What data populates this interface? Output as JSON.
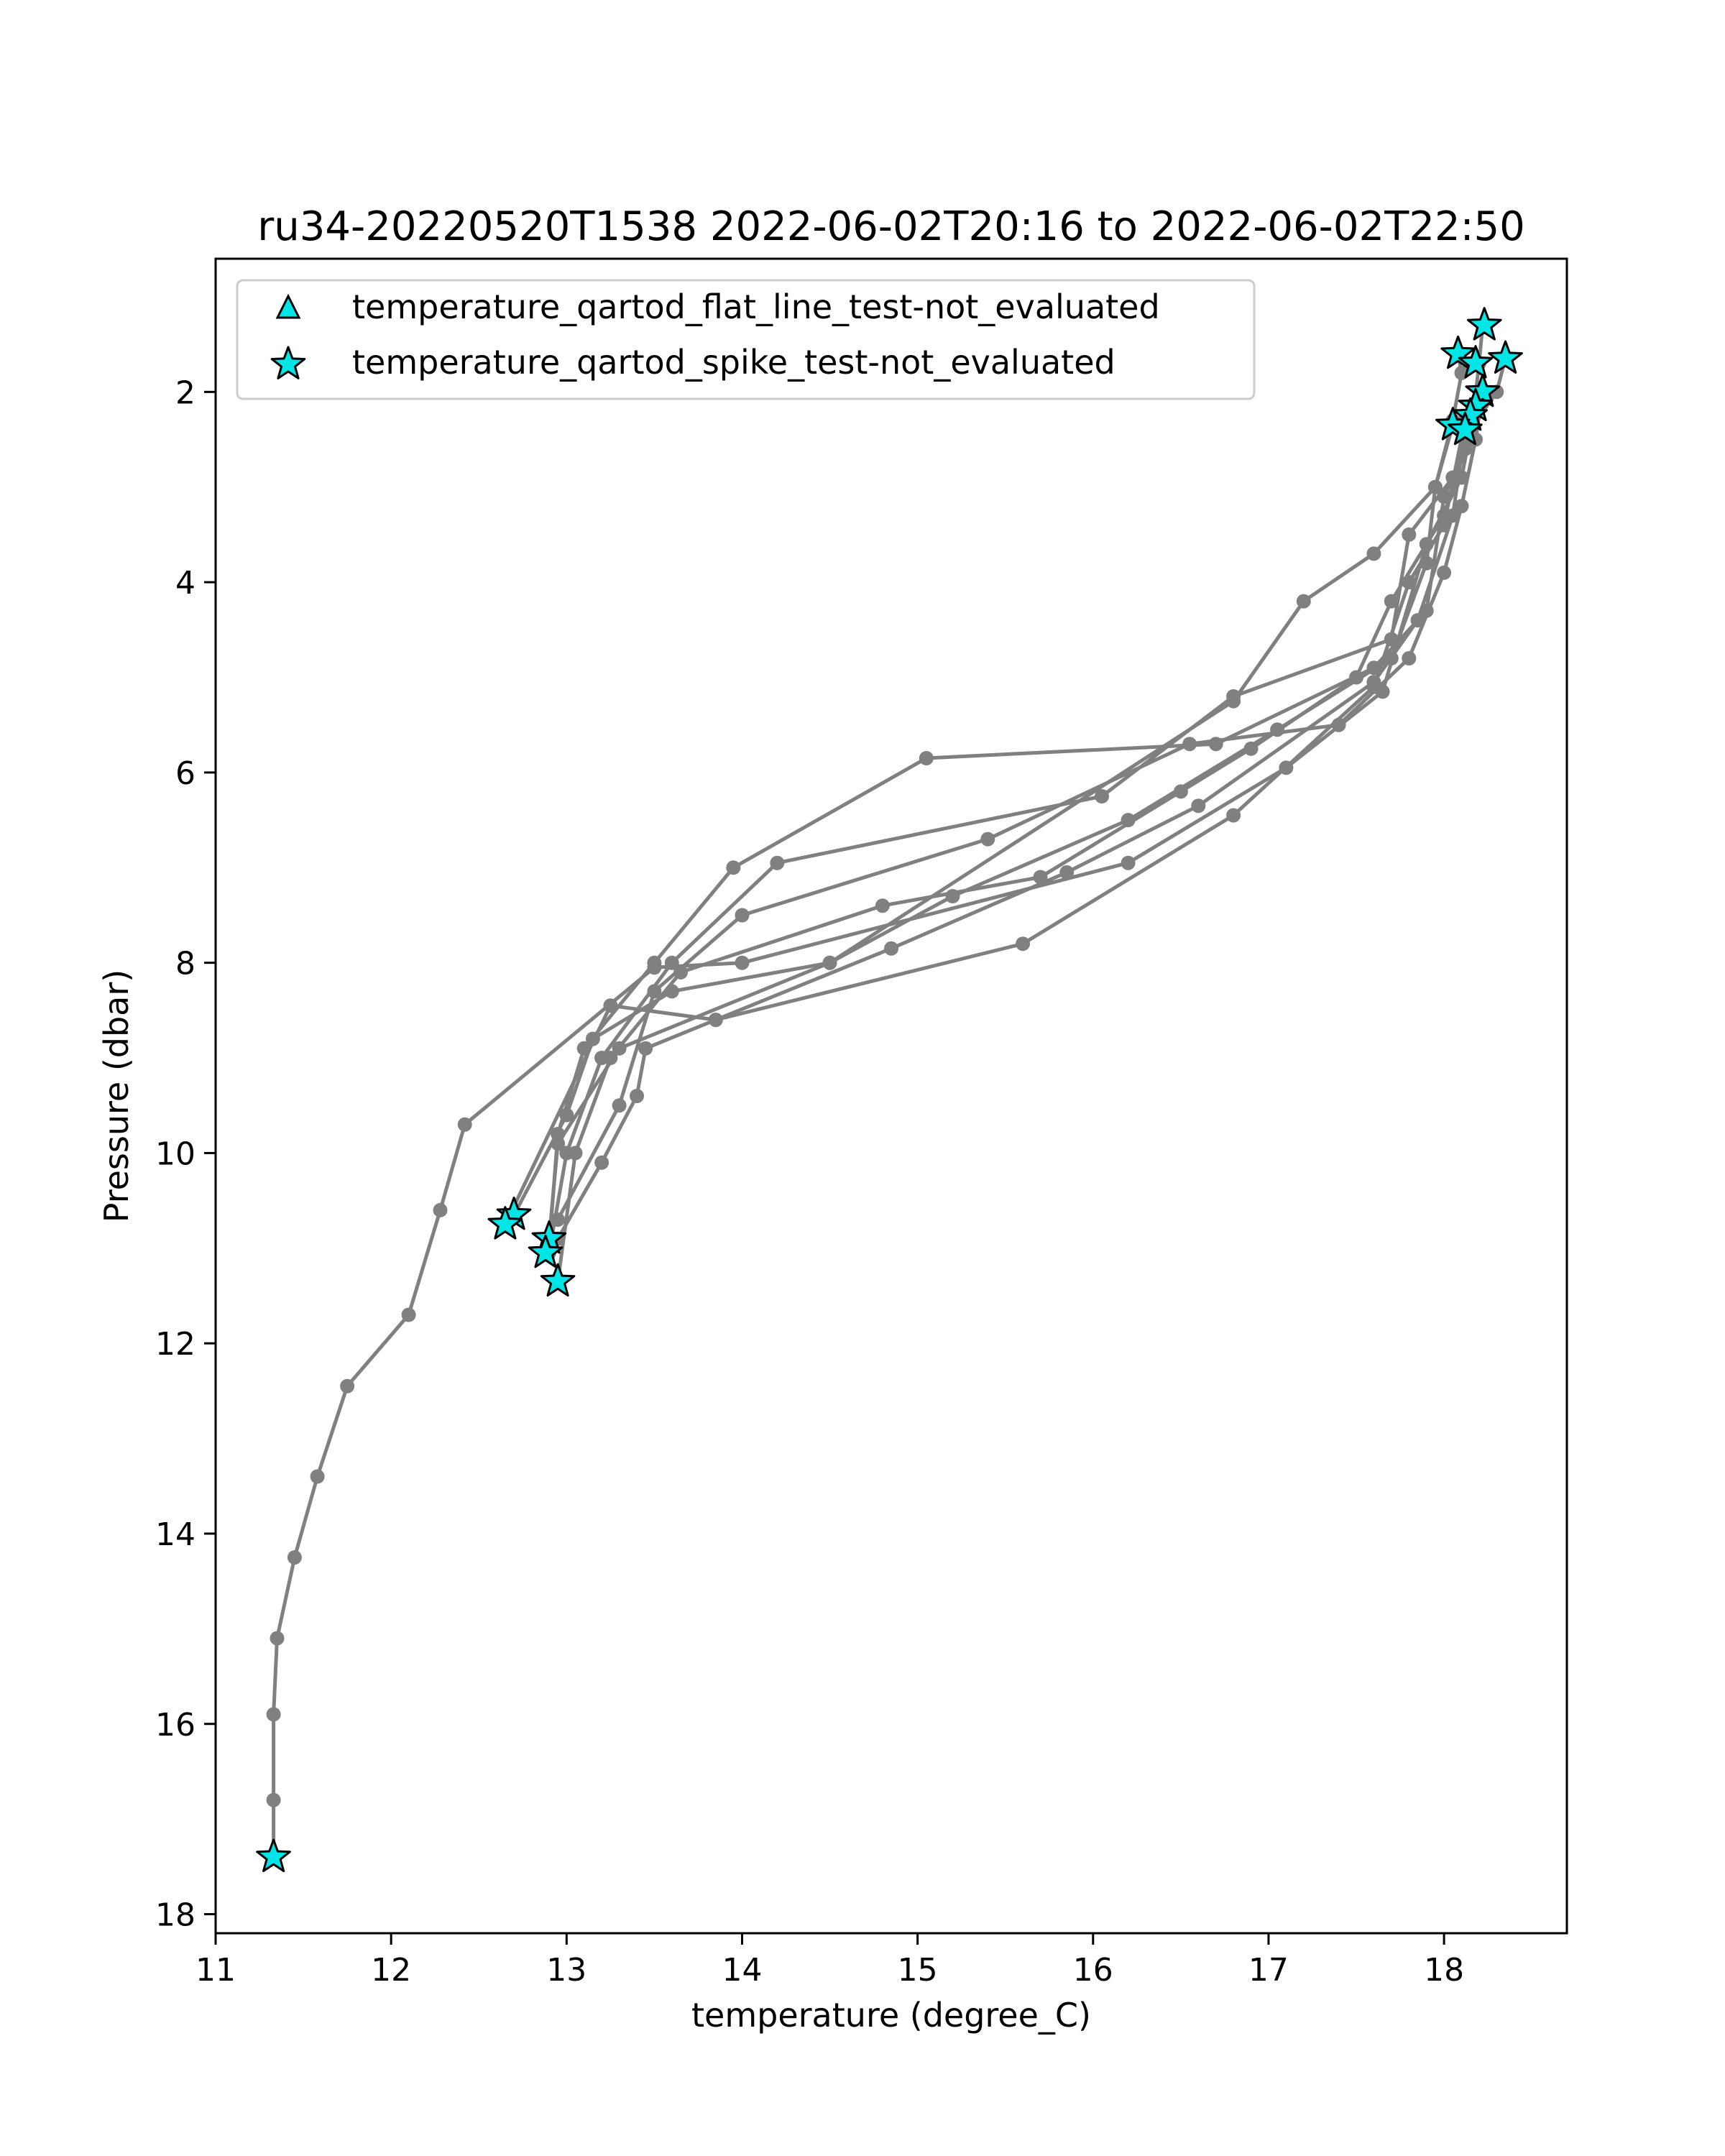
{
  "chart_data": {
    "type": "line",
    "title": "ru34-20220520T1538 2022-06-02T20:16 to 2022-06-02T22:50",
    "xlabel": "temperature (degree_C)",
    "ylabel": "Pressure (dbar)",
    "xlim": [
      11.0,
      18.7
    ],
    "ylim": [
      18.2,
      0.6
    ],
    "y_inverted": true,
    "x_ticks": [
      11,
      12,
      13,
      14,
      15,
      16,
      17,
      18
    ],
    "y_ticks": [
      2,
      4,
      6,
      8,
      10,
      12,
      14,
      16,
      18
    ],
    "grid": false,
    "legend_position": "upper-left",
    "line_color": "#808080",
    "marker_color": "#00e5e5",
    "legend": [
      {
        "label": "temperature_qartod_flat_line_test-not_evaluated",
        "marker": "triangle"
      },
      {
        "label": "temperature_qartod_spike_test-not_evaluated",
        "marker": "star"
      }
    ],
    "profiles": [
      [
        [
          18.08,
          1.6
        ],
        [
          18.1,
          1.8
        ],
        [
          18.05,
          2.3
        ],
        [
          17.95,
          3.0
        ],
        [
          17.6,
          3.7
        ],
        [
          17.2,
          4.2
        ],
        [
          16.8,
          5.25
        ],
        [
          14.5,
          8.0
        ],
        [
          13.3,
          8.9
        ],
        [
          12.95,
          9.9
        ],
        [
          12.9,
          10.9
        ]
      ],
      [
        [
          18.22,
          1.3
        ],
        [
          18.2,
          1.7
        ],
        [
          18.15,
          2.5
        ],
        [
          18.0,
          3.1
        ],
        [
          17.9,
          4.3
        ],
        [
          17.6,
          4.9
        ],
        [
          16.7,
          5.7
        ],
        [
          15.05,
          5.85
        ],
        [
          13.95,
          7.0
        ],
        [
          13.5,
          8.0
        ],
        [
          13.1,
          8.9
        ],
        [
          12.95,
          9.8
        ],
        [
          12.9,
          11.0
        ]
      ],
      [
        [
          18.35,
          1.65
        ],
        [
          18.3,
          2.0
        ],
        [
          18.15,
          2.4
        ],
        [
          18.05,
          2.9
        ],
        [
          17.8,
          3.5
        ],
        [
          17.7,
          4.6
        ],
        [
          16.8,
          5.2
        ],
        [
          16.05,
          6.25
        ],
        [
          14.2,
          6.95
        ],
        [
          13.6,
          8.0
        ],
        [
          13.2,
          9.0
        ],
        [
          13.0,
          10.0
        ],
        [
          12.9,
          11.05
        ]
      ],
      [
        [
          18.22,
          2.0
        ],
        [
          18.18,
          2.5
        ],
        [
          18.1,
          3.2
        ],
        [
          18.0,
          3.9
        ],
        [
          17.8,
          4.8
        ],
        [
          17.4,
          5.5
        ],
        [
          16.55,
          5.7
        ],
        [
          15.4,
          6.7
        ],
        [
          14.0,
          7.5
        ],
        [
          13.5,
          8.3
        ],
        [
          13.3,
          9.5
        ],
        [
          12.95,
          10.7
        ]
      ],
      [
        [
          18.15,
          2.25
        ],
        [
          18.12,
          2.6
        ],
        [
          18.0,
          3.3
        ],
        [
          17.7,
          4.2
        ],
        [
          17.5,
          5.0
        ],
        [
          16.9,
          5.75
        ],
        [
          16.5,
          6.2
        ],
        [
          15.7,
          7.1
        ],
        [
          14.8,
          7.4
        ],
        [
          13.65,
          8.1
        ],
        [
          13.25,
          9.0
        ],
        [
          13.05,
          10.0
        ],
        [
          12.95,
          11.35
        ]
      ],
      [
        [
          18.05,
          2.35
        ],
        [
          17.95,
          3.0
        ],
        [
          17.9,
          3.8
        ],
        [
          17.7,
          4.8
        ],
        [
          17.05,
          5.55
        ],
        [
          16.2,
          6.5
        ],
        [
          15.2,
          7.3
        ],
        [
          14.5,
          8.0
        ],
        [
          13.6,
          8.3
        ],
        [
          13.15,
          8.8
        ],
        [
          13.0,
          9.6
        ],
        [
          12.7,
          10.65
        ]
      ],
      [
        [
          18.12,
          2.4
        ],
        [
          18.05,
          3.3
        ],
        [
          17.85,
          4.4
        ],
        [
          17.6,
          5.05
        ],
        [
          16.6,
          6.35
        ],
        [
          15.85,
          7.05
        ],
        [
          14.85,
          7.85
        ],
        [
          13.85,
          8.6
        ],
        [
          13.25,
          8.45
        ],
        [
          12.65,
          10.75
        ]
      ],
      [
        [
          18.12,
          2.3
        ],
        [
          18.0,
          3.4
        ],
        [
          17.8,
          4.0
        ],
        [
          17.6,
          5.1
        ],
        [
          16.8,
          6.45
        ],
        [
          15.6,
          7.8
        ],
        [
          13.85,
          8.6
        ],
        [
          13.45,
          8.9
        ],
        [
          13.4,
          9.4
        ],
        [
          13.2,
          10.1
        ],
        [
          12.95,
          10.9
        ]
      ],
      [
        [
          18.18,
          2.15
        ],
        [
          18.1,
          2.9
        ],
        [
          17.9,
          3.6
        ],
        [
          17.65,
          5.15
        ],
        [
          17.1,
          5.95
        ],
        [
          16.2,
          6.95
        ],
        [
          14.0,
          8.0
        ],
        [
          13.5,
          8.05
        ],
        [
          12.42,
          9.7
        ],
        [
          12.28,
          10.6
        ],
        [
          12.1,
          11.7
        ],
        [
          11.75,
          12.45
        ],
        [
          11.58,
          13.4
        ],
        [
          11.45,
          14.25
        ],
        [
          11.35,
          15.1
        ],
        [
          11.33,
          15.9
        ],
        [
          11.33,
          16.8
        ],
        [
          11.33,
          17.4
        ]
      ]
    ],
    "spike_test_points": [
      [
        18.23,
        1.3
      ],
      [
        18.08,
        1.6
      ],
      [
        18.35,
        1.65
      ],
      [
        18.18,
        1.7
      ],
      [
        18.22,
        2.0
      ],
      [
        18.18,
        2.15
      ],
      [
        18.15,
        2.25
      ],
      [
        18.05,
        2.35
      ],
      [
        18.12,
        2.4
      ],
      [
        12.7,
        10.65
      ],
      [
        12.65,
        10.75
      ],
      [
        12.9,
        10.9
      ],
      [
        12.88,
        11.05
      ],
      [
        12.95,
        11.35
      ],
      [
        11.33,
        17.4
      ]
    ]
  }
}
